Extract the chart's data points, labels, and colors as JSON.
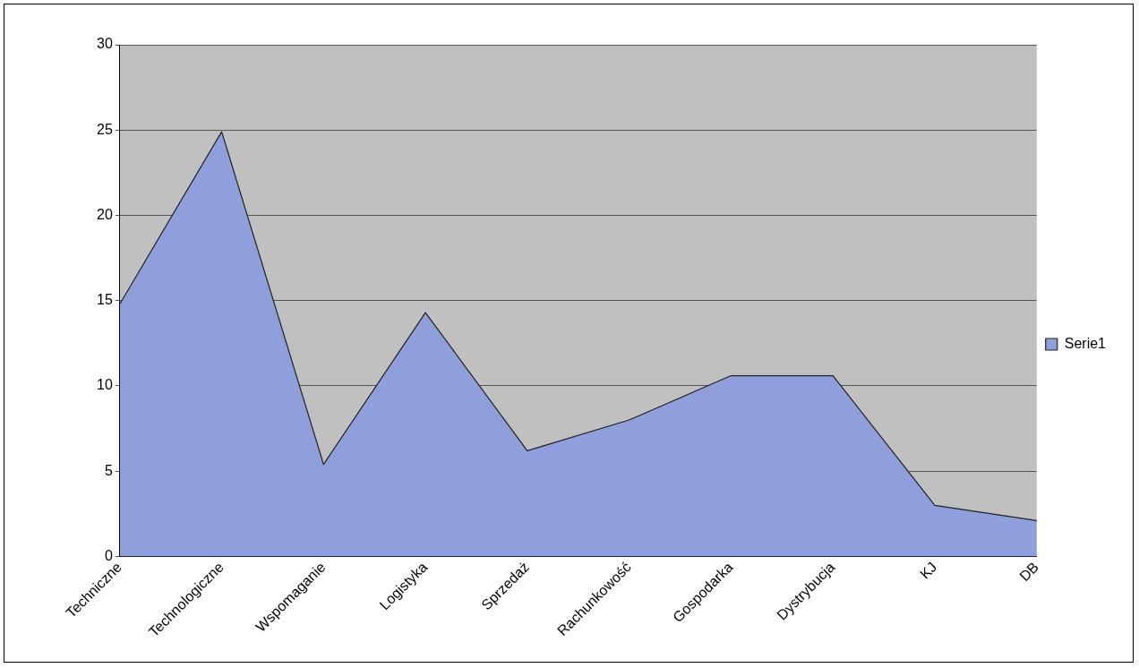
{
  "chart_data": {
    "type": "area",
    "categories": [
      "Techniczne",
      "Technologiczne",
      "Wspomaganie",
      "Logistyka",
      "Sprzedaż",
      "Rachunkowość",
      "Gospodarka",
      "Dystrybucja",
      "KJ",
      "DB"
    ],
    "series": [
      {
        "name": "Serie1",
        "color": "#8f9fdb",
        "values": [
          14.8,
          24.9,
          5.4,
          14.3,
          6.2,
          8.0,
          10.6,
          10.6,
          3.0,
          2.1
        ]
      }
    ],
    "ylim": [
      0,
      30
    ],
    "yticks": [
      0,
      5,
      10,
      15,
      20,
      25,
      30
    ],
    "grid": "y",
    "legend": "right",
    "marker": "none"
  }
}
